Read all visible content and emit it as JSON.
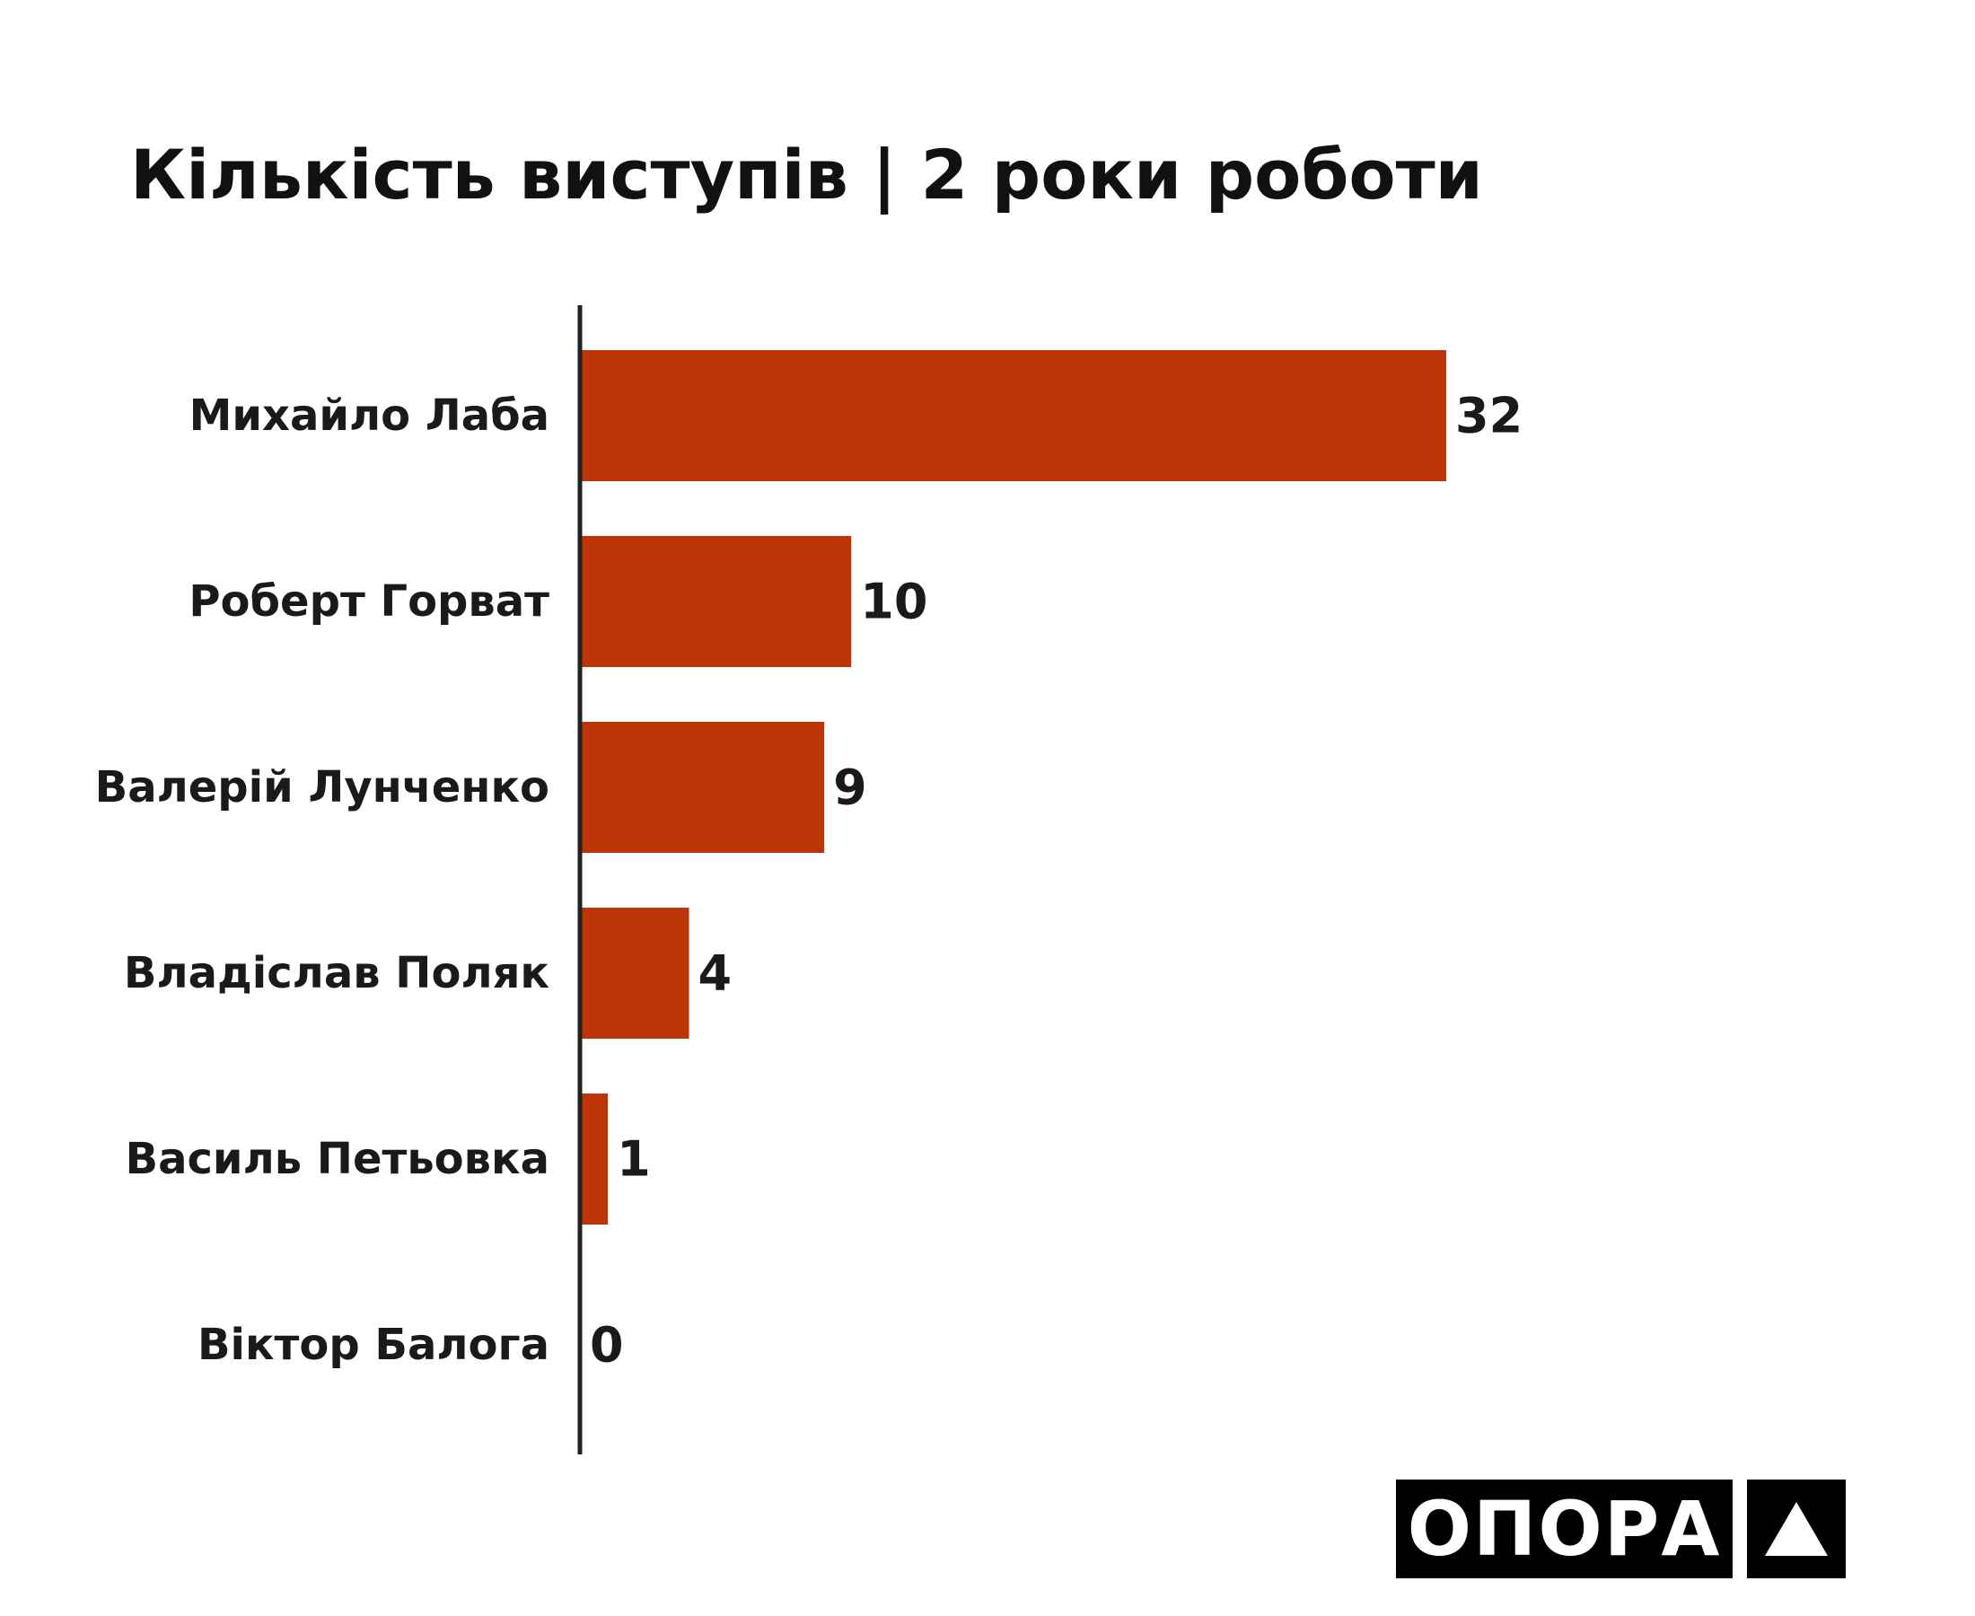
{
  "page": {
    "title": "Кількість виступів | 2 роки роботи"
  },
  "chart_data": {
    "type": "bar",
    "orientation": "horizontal",
    "title": "Кількість виступів | 2 роки роботи",
    "categories": [
      "Михайло Лаба",
      "Роберт Горват",
      "Валерій Лунченко",
      "Владіслав Поляк",
      "Василь Петьовка",
      "Віктор Балога"
    ],
    "values": [
      32,
      10,
      9,
      4,
      1,
      0
    ],
    "value_labels": [
      "32",
      "10",
      "9",
      "4",
      "1",
      "0"
    ],
    "xlim": [
      0,
      32
    ],
    "bar_color": "#bb3508",
    "axis_color": "#222222",
    "grid": false,
    "legend": "none"
  },
  "logo": {
    "text": "ОПОРА",
    "mark_icon": "triangle-up-icon"
  }
}
